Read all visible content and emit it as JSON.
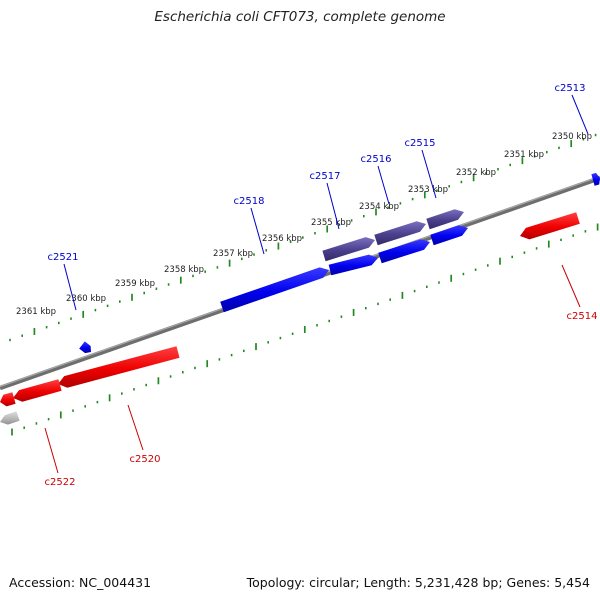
{
  "title": "Escherichia coli CFT073, complete genome",
  "footer": {
    "accession": "Accession: NC_004431",
    "summary": "Topology: circular; Length: 5,231,428 bp; Genes: 5,454"
  },
  "colors": {
    "forward_gene": "#0000ee",
    "reverse_gene": "#ee0000",
    "selected_gene": "#4a3f8c",
    "pseudo_gene": "#b8b8b8",
    "backbone": "#7a7a7a",
    "ticks": "#228822",
    "forward_label": "#0000cc",
    "reverse_label": "#cc0000"
  },
  "scale_labels": [
    "2361 kbp",
    "2360 kbp",
    "2359 kbp",
    "2358 kbp",
    "2357 kbp",
    "2356 kbp",
    "2355 kbp",
    "2354 kbp",
    "2353 kbp",
    "2352 kbp",
    "2351 kbp",
    "2350 kbp"
  ],
  "genes": {
    "forward": [
      "c2521",
      "c2518",
      "c2517",
      "c2516",
      "c2515",
      "c2513"
    ],
    "reverse": [
      "c2522",
      "c2520",
      "c2514"
    ]
  }
}
